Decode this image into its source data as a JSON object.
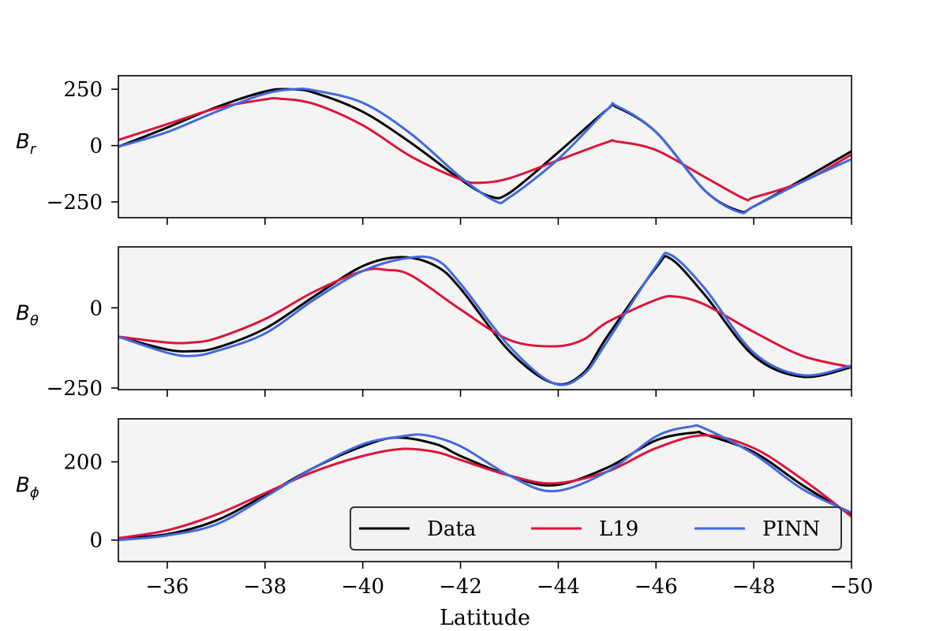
{
  "chart_data": {
    "type": "line",
    "xlabel": "Latitude",
    "xlim": [
      -35,
      -50
    ],
    "xticks": [
      -36,
      -38,
      -40,
      -42,
      -44,
      -46,
      -48,
      -50
    ],
    "xtick_labels": [
      "−36",
      "−38",
      "−40",
      "−42",
      "−44",
      "−46",
      "−48",
      "−50"
    ],
    "legend": {
      "location": "lower-right",
      "entries": [
        {
          "label": "Data",
          "color": "#000000"
        },
        {
          "label": "L19",
          "color": "#dc143c"
        },
        {
          "label": "PINN",
          "color": "#4169e1"
        }
      ]
    },
    "background_color": "#f4f4f4",
    "grid": false,
    "panels": [
      {
        "ylabel_main": "B",
        "ylabel_sub": "r",
        "ylim": [
          -320,
          310
        ],
        "yticks": [
          250,
          0,
          -250
        ],
        "ytick_labels": [
          "250",
          "0",
          "−250"
        ],
        "series": [
          {
            "name": "Data",
            "color": "#000000",
            "x": [
              -35,
              -36,
              -37,
              -38,
              -38.5,
              -39,
              -40,
              -41,
              -42,
              -42.6,
              -43,
              -44,
              -45,
              -45.2,
              -46,
              -47,
              -47.7,
              -48,
              -49,
              -50
            ],
            "y": [
              -5,
              80,
              170,
              240,
              250,
              235,
              150,
              10,
              -150,
              -225,
              -210,
              -30,
              160,
              170,
              60,
              -200,
              -290,
              -270,
              -150,
              -25
            ]
          },
          {
            "name": "L19",
            "color": "#dc143c",
            "x": [
              -35,
              -36,
              -37,
              -38,
              -38.3,
              -39,
              -40,
              -41,
              -42,
              -42.4,
              -43,
              -44,
              -45,
              -45.2,
              -46,
              -47,
              -47.8,
              -48,
              -49,
              -50
            ],
            "y": [
              25,
              95,
              165,
              205,
              208,
              185,
              90,
              -50,
              -150,
              -165,
              -145,
              -65,
              15,
              18,
              -20,
              -140,
              -235,
              -230,
              -160,
              -40
            ]
          },
          {
            "name": "PINN",
            "color": "#4169e1",
            "x": [
              -35,
              -36,
              -37,
              -38,
              -38.6,
              -39,
              -40,
              -41,
              -42,
              -42.7,
              -43,
              -44,
              -45,
              -45.2,
              -46,
              -47,
              -47.7,
              -48,
              -49,
              -50
            ],
            "y": [
              -5,
              60,
              150,
              230,
              250,
              245,
              190,
              50,
              -140,
              -245,
              -230,
              -60,
              160,
              175,
              60,
              -200,
              -295,
              -270,
              -160,
              -60
            ]
          }
        ]
      },
      {
        "ylabel_main": "B",
        "ylabel_sub": "θ",
        "ylim": [
          -255,
          190
        ],
        "yticks": [
          0,
          -250
        ],
        "ytick_labels": [
          "0",
          "−250"
        ],
        "series": [
          {
            "name": "Data",
            "color": "#000000",
            "x": [
              -35,
              -36,
              -36.5,
              -37,
              -38,
              -39,
              -40,
              -40.8,
              -41.5,
              -42,
              -43,
              -43.9,
              -44.5,
              -45,
              -46,
              -46.3,
              -47,
              -48,
              -49,
              -50
            ],
            "y": [
              -90,
              -130,
              -135,
              -125,
              -65,
              35,
              130,
              158,
              130,
              60,
              -135,
              -235,
              -205,
              -90,
              125,
              153,
              40,
              -150,
              -215,
              -185
            ]
          },
          {
            "name": "L19",
            "color": "#dc143c",
            "x": [
              -35,
              -36,
              -36.5,
              -37,
              -38,
              -39,
              -40,
              -40.5,
              -41,
              -42,
              -43,
              -43.9,
              -44.5,
              -45,
              -46,
              -46.4,
              -47,
              -48,
              -49,
              -50
            ],
            "y": [
              -90,
              -108,
              -108,
              -95,
              -35,
              50,
              115,
              118,
              100,
              -5,
              -100,
              -120,
              -100,
              -45,
              25,
              35,
              10,
              -75,
              -150,
              -185
            ]
          },
          {
            "name": "PINN",
            "color": "#4169e1",
            "x": [
              -35,
              -36,
              -36.5,
              -37,
              -38,
              -39,
              -40,
              -40.9,
              -41.5,
              -42,
              -43,
              -43.9,
              -44.5,
              -45,
              -46,
              -46.3,
              -47,
              -48,
              -49,
              -50
            ],
            "y": [
              -90,
              -140,
              -150,
              -135,
              -80,
              25,
              115,
              155,
              150,
              75,
              -120,
              -235,
              -210,
              -105,
              130,
              165,
              60,
              -140,
              -210,
              -180
            ]
          }
        ]
      },
      {
        "ylabel_main": "B",
        "ylabel_sub": "ϕ",
        "ylim": [
          -55,
          310
        ],
        "yticks": [
          200,
          0
        ],
        "ytick_labels": [
          "200",
          "0"
        ],
        "series": [
          {
            "name": "Data",
            "color": "#000000",
            "x": [
              -35,
              -36,
              -37,
              -38,
              -39,
              -40,
              -40.7,
              -41.5,
              -42,
              -43,
              -43.9,
              -45,
              -46,
              -46.8,
              -47,
              -48,
              -49,
              -50
            ],
            "y": [
              5,
              15,
              50,
              115,
              185,
              240,
              262,
              245,
              215,
              165,
              140,
              185,
              255,
              275,
              270,
              225,
              140,
              65
            ]
          },
          {
            "name": "L19",
            "color": "#dc143c",
            "x": [
              -35,
              -36,
              -37,
              -38,
              -39,
              -40,
              -40.8,
              -41.5,
              -42,
              -43,
              -43.9,
              -45,
              -46,
              -47,
              -48,
              -49,
              -50
            ],
            "y": [
              5,
              25,
              65,
              120,
              175,
              215,
              233,
              225,
              205,
              165,
              145,
              175,
              235,
              268,
              235,
              155,
              60
            ]
          },
          {
            "name": "PINN",
            "color": "#4169e1",
            "x": [
              -35,
              -36,
              -37,
              -38,
              -39,
              -40,
              -40.8,
              -41.3,
              -42,
              -43,
              -43.9,
              -45,
              -46,
              -46.7,
              -47,
              -48,
              -49,
              -50
            ],
            "y": [
              0,
              12,
              40,
              110,
              185,
              245,
              265,
              268,
              240,
              165,
              125,
              175,
              265,
              290,
              285,
              220,
              130,
              70
            ]
          }
        ]
      }
    ]
  }
}
